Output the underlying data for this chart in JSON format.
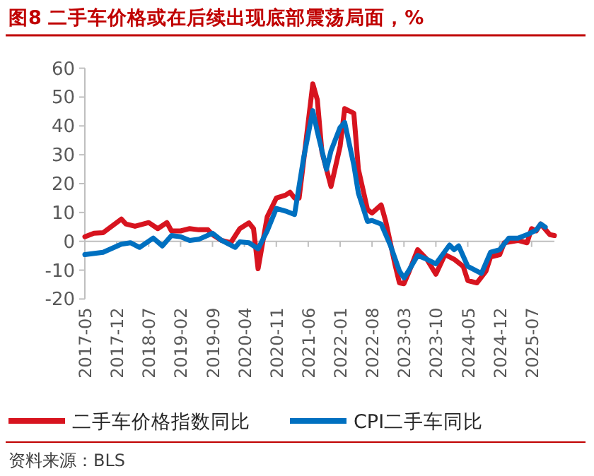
{
  "chart_data": {
    "type": "line",
    "title": "图8  二手车价格或在后续出现底部震荡局面，%",
    "ylim": [
      -20,
      60
    ],
    "yticks": [
      -20,
      -10,
      0,
      10,
      20,
      30,
      40,
      50,
      60
    ],
    "xlim": [
      "2017-05",
      "2025-12"
    ],
    "xticks": [
      "2017-05",
      "2017-12",
      "2018-07",
      "2019-02",
      "2019-09",
      "2020-04",
      "2020-11",
      "2021-06",
      "2022-01",
      "2022-08",
      "2023-03",
      "2023-10",
      "2024-05",
      "2024-12",
      "2025-07"
    ],
    "legend": "bottom",
    "line_style": "solid",
    "marker": "none",
    "annotations": [
      "资料来源：BLS"
    ],
    "series": [
      {
        "name": "二手车价格指数同比",
        "color": "#d7141f",
        "x": [
          "2017-05",
          "2017-07",
          "2017-09",
          "2018-01",
          "2018-02",
          "2018-04",
          "2018-07",
          "2018-09",
          "2018-11",
          "2018-12",
          "2019-02",
          "2019-04",
          "2019-06",
          "2019-08",
          "2019-09",
          "2019-11",
          "2020-01",
          "2020-03",
          "2020-05",
          "2020-06",
          "2020-07",
          "2020-09",
          "2020-11",
          "2021-01",
          "2021-02",
          "2021-03",
          "2021-04",
          "2021-05",
          "2021-07",
          "2021-08",
          "2021-09",
          "2021-11",
          "2022-01",
          "2022-02",
          "2022-04",
          "2022-05",
          "2022-07",
          "2022-08",
          "2022-10",
          "2022-11",
          "2023-01",
          "2023-02",
          "2023-03",
          "2023-04",
          "2023-06",
          "2023-08",
          "2023-10",
          "2023-12",
          "2024-02",
          "2024-04",
          "2024-05",
          "2024-07",
          "2024-09",
          "2024-10",
          "2024-12",
          "2025-01",
          "2025-04",
          "2025-06",
          "2025-07",
          "2025-08",
          "2025-09",
          "2025-11",
          "2025-12"
        ],
        "values": [
          1.6,
          2.8,
          3,
          7.7,
          6,
          5.2,
          6.5,
          4.4,
          6.5,
          3.6,
          3.6,
          4.4,
          4,
          4,
          2.3,
          0.3,
          -0.5,
          4.4,
          6.4,
          4.4,
          -9.5,
          8.5,
          15,
          16,
          17,
          15,
          15,
          28,
          54.6,
          49,
          31,
          19,
          33,
          46,
          44.4,
          25,
          11,
          9.8,
          12.6,
          6.9,
          -7.8,
          -14.4,
          -14.7,
          -11,
          -2.9,
          -6.2,
          -11.4,
          -4.6,
          -6.2,
          -8.7,
          -13.6,
          -14.4,
          -10.3,
          -5.4,
          -4.6,
          -0.5,
          0.3,
          -0.5,
          4.4,
          3.6,
          6,
          2.3,
          2
        ]
      },
      {
        "name": "CPI二手车同比",
        "color": "#0070c0",
        "x": [
          "2017-05",
          "2017-09",
          "2018-01",
          "2018-03",
          "2018-05",
          "2018-08",
          "2018-10",
          "2018-12",
          "2019-02",
          "2019-04",
          "2019-06",
          "2019-09",
          "2019-11",
          "2020-02",
          "2020-03",
          "2020-05",
          "2020-07",
          "2020-09",
          "2020-11",
          "2021-01",
          "2021-03",
          "2021-05",
          "2021-07",
          "2021-08",
          "2021-10",
          "2021-11",
          "2022-01",
          "2022-02",
          "2022-04",
          "2022-05",
          "2022-07",
          "2022-08",
          "2022-10",
          "2022-12",
          "2023-02",
          "2023-03",
          "2023-04",
          "2023-06",
          "2023-08",
          "2023-10",
          "2024-01",
          "2024-02",
          "2024-03",
          "2024-05",
          "2024-07",
          "2024-08",
          "2024-10",
          "2024-12",
          "2025-02",
          "2025-04",
          "2025-06",
          "2025-08",
          "2025-09",
          "2025-10"
        ],
        "values": [
          -4.6,
          -3.8,
          -1,
          -0.5,
          -2.1,
          1.1,
          -1.6,
          2,
          1.6,
          0.3,
          0.7,
          2.8,
          0.3,
          -2.1,
          -0.2,
          -0.5,
          -2.6,
          3.6,
          11.4,
          10.5,
          9.3,
          29,
          45.3,
          38,
          25,
          31.4,
          39.5,
          41.2,
          26.5,
          16.7,
          6.9,
          7.2,
          6,
          -1.3,
          -10.3,
          -12.7,
          -10.3,
          -4.9,
          -6.2,
          -7.8,
          -1.3,
          -2.9,
          -1.6,
          -8.7,
          -10.3,
          -11.1,
          -3.8,
          -2.9,
          1.1,
          1.1,
          2.3,
          3.9,
          6,
          4.9
        ]
      }
    ]
  }
}
